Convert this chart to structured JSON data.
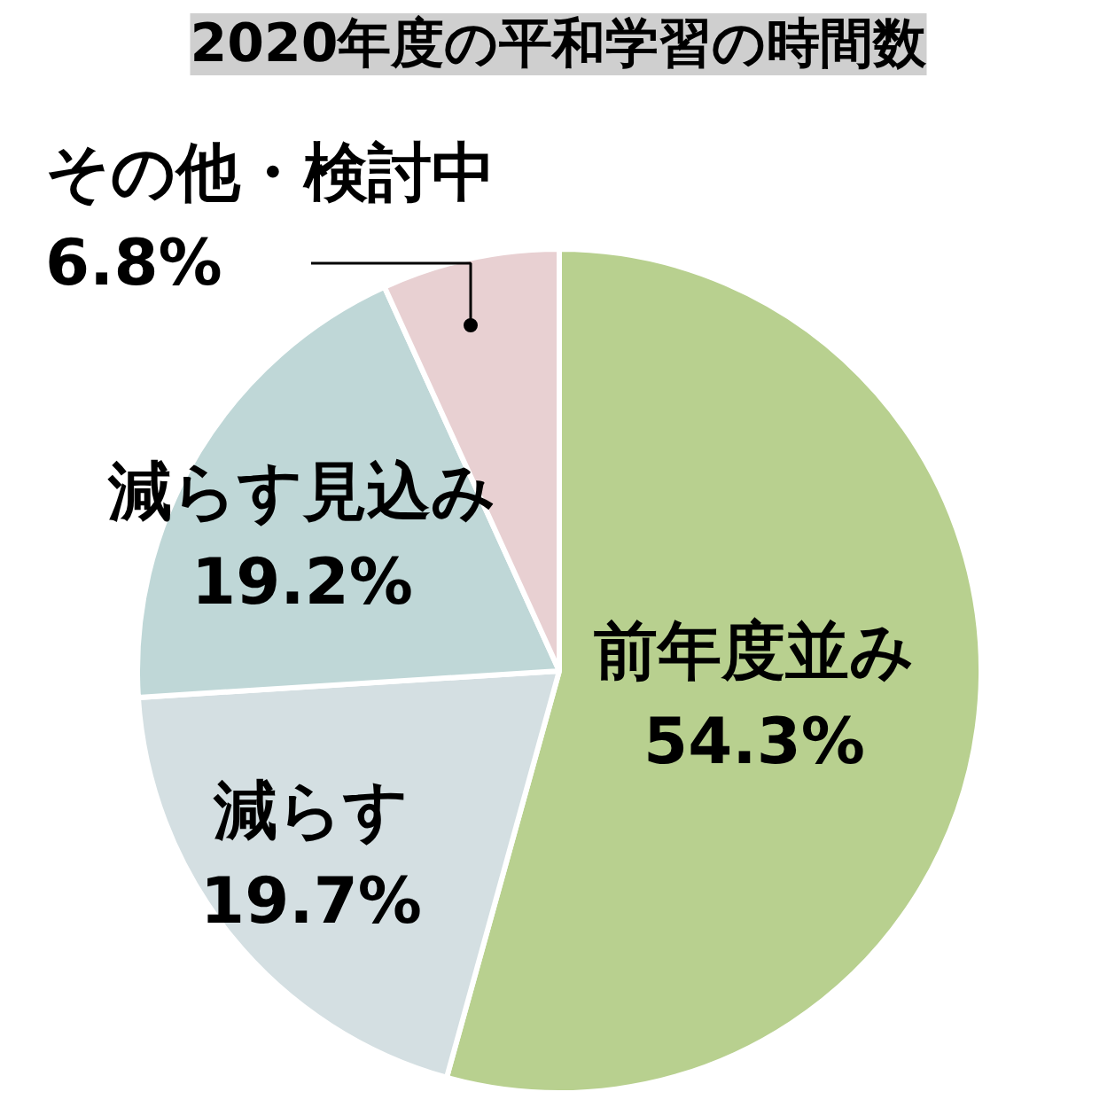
{
  "chart_data": {
    "type": "pie",
    "title": "2020年度の平和学習の時間数",
    "categories": [
      "前年度並み",
      "減らす",
      "減らす見込み",
      "その他・検討中"
    ],
    "values": [
      54.3,
      19.7,
      19.2,
      6.8
    ],
    "value_labels": [
      "54.3%",
      "19.7%",
      "19.2%",
      "6.8%"
    ],
    "colors": [
      "#b8d08f",
      "#d4dfe2",
      "#bfd7d7",
      "#e8d0d2"
    ]
  }
}
